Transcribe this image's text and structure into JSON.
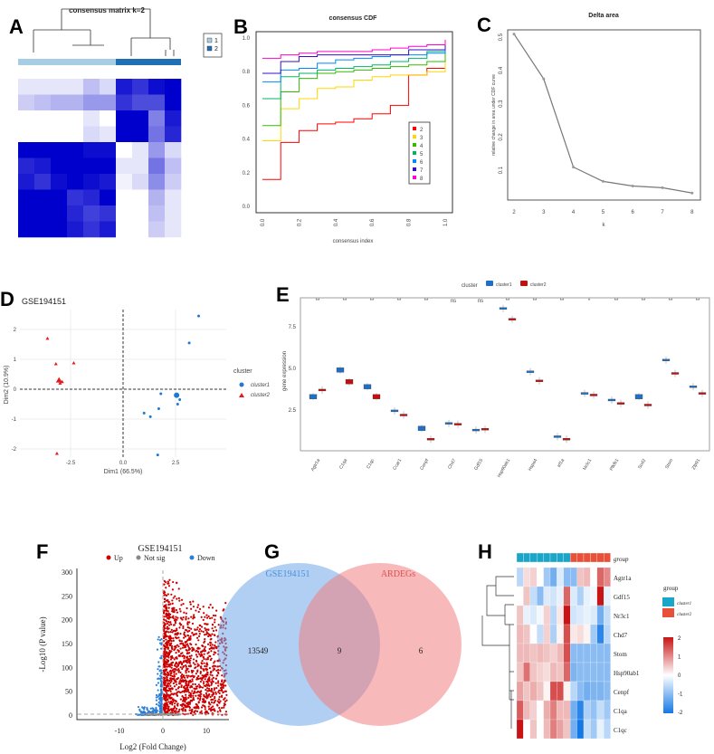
{
  "panel_labels": [
    "A",
    "B",
    "C",
    "D",
    "E",
    "F",
    "G",
    "H"
  ],
  "chart_data": [
    {
      "panel": "A",
      "type": "heatmap",
      "title": "consensus matrix k=2",
      "legend": [
        "1",
        "2"
      ],
      "legend_colors": [
        "#a6cde3",
        "#1f6fb4"
      ],
      "column_groups": [
        1,
        1,
        1,
        1,
        1,
        1,
        2,
        2,
        2,
        2
      ],
      "matrix": [
        [
          0.1,
          0.1,
          0.1,
          0.1,
          0.25,
          0.15,
          0.9,
          0.8,
          0.95,
          1.0
        ],
        [
          0.2,
          0.25,
          0.3,
          0.3,
          0.4,
          0.4,
          0.8,
          0.7,
          0.7,
          1.0
        ],
        [
          0,
          0,
          0,
          0,
          0.1,
          0,
          1,
          1,
          0.5,
          0.9
        ],
        [
          0,
          0,
          0,
          0,
          0.15,
          0.1,
          1,
          1,
          0.55,
          0.85
        ],
        [
          1,
          1,
          1,
          1,
          0.95,
          0.95,
          0,
          0.1,
          0.4,
          0.15
        ],
        [
          0.85,
          0.9,
          1,
          1,
          1,
          1,
          0.1,
          0.1,
          0.55,
          0.25
        ],
        [
          0.9,
          0.8,
          0.95,
          1,
          0.95,
          0.9,
          0.05,
          0.15,
          0.45,
          0.2
        ],
        [
          1,
          1,
          1,
          0.8,
          0.85,
          1,
          0,
          0,
          0.3,
          0.1
        ],
        [
          1,
          1,
          1,
          0.85,
          0.75,
          0.8,
          0,
          0,
          0.25,
          0.1
        ],
        [
          1,
          1,
          1,
          0.9,
          0.8,
          0.9,
          0,
          0,
          0.2,
          0.1
        ]
      ]
    },
    {
      "panel": "B",
      "type": "line",
      "title": "consensus CDF",
      "xlabel": "consensus index",
      "ylabel": "",
      "xlim": [
        0,
        1
      ],
      "ylim": [
        0,
        1
      ],
      "xticks": [
        "0.0",
        "0.2",
        "0.4",
        "0.6",
        "0.8",
        "1.0"
      ],
      "yticks": [
        "0.0",
        "0.2",
        "0.4",
        "0.6",
        "0.8",
        "1.0"
      ],
      "x": [
        0,
        0.1,
        0.2,
        0.3,
        0.4,
        0.5,
        0.6,
        0.7,
        0.8,
        0.9,
        1.0
      ],
      "legend_position": "right",
      "series": [
        {
          "name": "2",
          "color": "#ff0000",
          "values": [
            0.16,
            0.38,
            0.45,
            0.49,
            0.5,
            0.52,
            0.55,
            0.6,
            0.78,
            0.82,
            0.95
          ]
        },
        {
          "name": "3",
          "color": "#ffd700",
          "values": [
            0.39,
            0.58,
            0.64,
            0.7,
            0.71,
            0.75,
            0.77,
            0.78,
            0.78,
            0.8,
            0.93
          ]
        },
        {
          "name": "4",
          "color": "#33bb00",
          "values": [
            0.48,
            0.68,
            0.76,
            0.79,
            0.8,
            0.81,
            0.82,
            0.83,
            0.84,
            0.86,
            0.95
          ]
        },
        {
          "name": "5",
          "color": "#00b36b",
          "values": [
            0.64,
            0.77,
            0.79,
            0.81,
            0.82,
            0.83,
            0.84,
            0.86,
            0.88,
            0.92,
            0.96
          ]
        },
        {
          "name": "6",
          "color": "#0088ff",
          "values": [
            0.74,
            0.81,
            0.82,
            0.85,
            0.87,
            0.88,
            0.89,
            0.9,
            0.9,
            0.91,
            0.97
          ]
        },
        {
          "name": "7",
          "color": "#3311cc",
          "values": [
            0.79,
            0.86,
            0.89,
            0.9,
            0.9,
            0.9,
            0.9,
            0.9,
            0.93,
            0.93,
            0.98
          ]
        },
        {
          "name": "8",
          "color": "#ff00cc",
          "values": [
            0.88,
            0.9,
            0.91,
            0.92,
            0.92,
            0.92,
            0.93,
            0.94,
            0.95,
            0.96,
            0.99
          ]
        }
      ]
    },
    {
      "panel": "C",
      "type": "line",
      "title": "Delta area",
      "xlabel": "k",
      "ylabel": "relative change in area under CDF curve",
      "x": [
        2,
        3,
        4,
        5,
        6,
        7,
        8
      ],
      "values": [
        0.51,
        0.375,
        0.11,
        0.067,
        0.053,
        0.048,
        0.032
      ],
      "yticks": [
        "0.1",
        "0.2",
        "0.3",
        "0.4",
        "0.5"
      ]
    },
    {
      "panel": "D",
      "type": "scatter",
      "title": "GSE194151",
      "xlabel": "Dim1 (66.5%)",
      "ylabel": "Dim2 (10.9%)",
      "xticks": [
        "-2.5",
        "0.0",
        "2.5"
      ],
      "yticks": [
        "-2",
        "-1",
        "0",
        "1",
        "2"
      ],
      "legend_title": "cluster",
      "legend_position": "right",
      "series": [
        {
          "name": "cluster1",
          "color": "#1f78d1",
          "points": [
            [
              3.6,
              2.45
            ],
            [
              3.15,
              1.55
            ],
            [
              1.8,
              -0.15
            ],
            [
              2.7,
              -0.35
            ],
            [
              2.6,
              -0.5
            ],
            [
              1.7,
              -0.65
            ],
            [
              1.0,
              -0.8
            ],
            [
              1.3,
              -0.92
            ],
            [
              1.65,
              -2.2
            ]
          ],
          "centroid": [
            2.55,
            -0.2
          ]
        },
        {
          "name": "cluster2",
          "color": "#e41a1c",
          "points": [
            [
              -3.6,
              1.7
            ],
            [
              -3.2,
              0.85
            ],
            [
              -2.35,
              0.88
            ],
            [
              -2.9,
              0.25
            ],
            [
              -3.0,
              0.2
            ],
            [
              -3.15,
              -2.15
            ]
          ],
          "centroid": [
            -3.05,
            0.3
          ]
        }
      ]
    },
    {
      "panel": "E",
      "type": "box",
      "xlabel": "",
      "ylabel": "gene expression",
      "legend_title": "cluster",
      "legend_position": "top",
      "yticks": [
        "2.5",
        "5.0",
        "7.5"
      ],
      "categories": [
        "Agtr1a",
        "C1qa",
        "C1qc",
        "Ccar1",
        "Cenpf",
        "Chd7",
        "Gdf15",
        "Hsp90ab1",
        "Hspa4",
        "Irf1a",
        "Nr3c1",
        "Pfkfb1",
        "Sod2",
        "Stom",
        "Zfp91"
      ],
      "significance": [
        "**",
        "**",
        "**",
        "**",
        "**",
        "ns",
        "ns",
        "**",
        "**",
        "**",
        "*",
        "**",
        "**",
        "**",
        "**"
      ],
      "series": [
        {
          "name": "cluster1",
          "color": "#1f6fc4",
          "values": [
            3.3,
            4.9,
            3.9,
            2.45,
            1.4,
            1.7,
            1.3,
            8.6,
            4.8,
            0.9,
            3.5,
            3.1,
            3.3,
            5.5,
            3.9
          ]
        },
        {
          "name": "cluster2",
          "color": "#c01010",
          "values": [
            3.7,
            4.2,
            3.3,
            2.2,
            0.75,
            1.65,
            1.35,
            7.95,
            4.25,
            0.75,
            3.4,
            2.9,
            2.8,
            4.7,
            3.5
          ]
        }
      ]
    },
    {
      "panel": "F",
      "type": "scatter",
      "title": "GSE194151",
      "xlabel": "Log2 (Fold Change)",
      "ylabel": "-Log10 (P value)",
      "xticks": [
        "-10",
        "0",
        "10"
      ],
      "yticks": [
        "0",
        "50",
        "100",
        "150",
        "200",
        "250",
        "300"
      ],
      "xlim": [
        -18,
        15
      ],
      "ylim": [
        0,
        305
      ],
      "legend": [
        {
          "name": "Up",
          "color": "#cc0000"
        },
        {
          "name": "Not sig",
          "color": "#888888"
        },
        {
          "name": "Down",
          "color": "#2a7fd4"
        }
      ]
    },
    {
      "panel": "G",
      "type": "venn",
      "sets": [
        {
          "name": "GSE194151",
          "color": "#6fa8e8",
          "only": "13549"
        },
        {
          "name": "ARDEGs",
          "color": "#f08080",
          "only": "6"
        }
      ],
      "intersection": "9"
    },
    {
      "panel": "H",
      "type": "heatmap",
      "annotation_label": "group",
      "legend_title": "group",
      "groups": [
        {
          "name": "cluster1",
          "color": "#1aa6c8"
        },
        {
          "name": "cluster2",
          "color": "#e8503a"
        }
      ],
      "column_groups": [
        1,
        1,
        1,
        1,
        1,
        1,
        1,
        1,
        2,
        2,
        2,
        2,
        2,
        2
      ],
      "scale_ticks": [
        "2",
        "1",
        "0",
        "-1",
        "-2"
      ],
      "rows": [
        "Agtr1a",
        "Gdf15",
        "Nr3c1",
        "Chd7",
        "Stom",
        "Hsp90ab1",
        "Cenpf",
        "C1qa",
        "C1qc"
      ],
      "matrix": [
        [
          -0.6,
          0.3,
          0.4,
          0,
          -0.8,
          -1.2,
          -0.3,
          -1,
          -1,
          0.5,
          0.6,
          0,
          1.3,
          1.0
        ],
        [
          0,
          0.5,
          -0.5,
          -1.0,
          -0.3,
          -0.4,
          -0.2,
          1.3,
          -0.3,
          -0.7,
          -0.2,
          -0.1,
          2,
          -0.2
        ],
        [
          0.5,
          -0.2,
          -0.3,
          -0.1,
          0.4,
          -0.6,
          0.2,
          2.2,
          -0.4,
          -0.3,
          -0.2,
          -0.3,
          -1.2,
          -0.5
        ],
        [
          0.6,
          0.5,
          0,
          -0.5,
          0.4,
          -0.7,
          0.1,
          1.5,
          0.2,
          0.3,
          0.1,
          -0.8,
          -1.8,
          -0.6
        ],
        [
          0.6,
          0.6,
          0.5,
          0.6,
          0.5,
          0.4,
          0.6,
          1.5,
          -1,
          -1,
          -1,
          -1,
          -1,
          -1
        ],
        [
          0.5,
          1.2,
          0.5,
          0.4,
          0.3,
          0.6,
          0.5,
          1.3,
          -1.1,
          -1,
          -1,
          -1,
          -1,
          -1
        ],
        [
          0.8,
          0.5,
          0.7,
          0.5,
          0.1,
          1.5,
          1.5,
          0.1,
          -0.6,
          -1,
          -1.2,
          -1.1,
          -1.1,
          -1
        ],
        [
          1.4,
          0.6,
          0.4,
          0,
          0.7,
          1.1,
          0.6,
          0.6,
          -1.2,
          -1.8,
          -0.7,
          -0.9,
          -0.5,
          -0.8
        ],
        [
          2,
          0,
          0.5,
          0,
          0.6,
          1.1,
          0.8,
          0.5,
          -1.2,
          -2,
          -0.5,
          -0.8,
          -0.2,
          -0.6
        ]
      ]
    }
  ]
}
